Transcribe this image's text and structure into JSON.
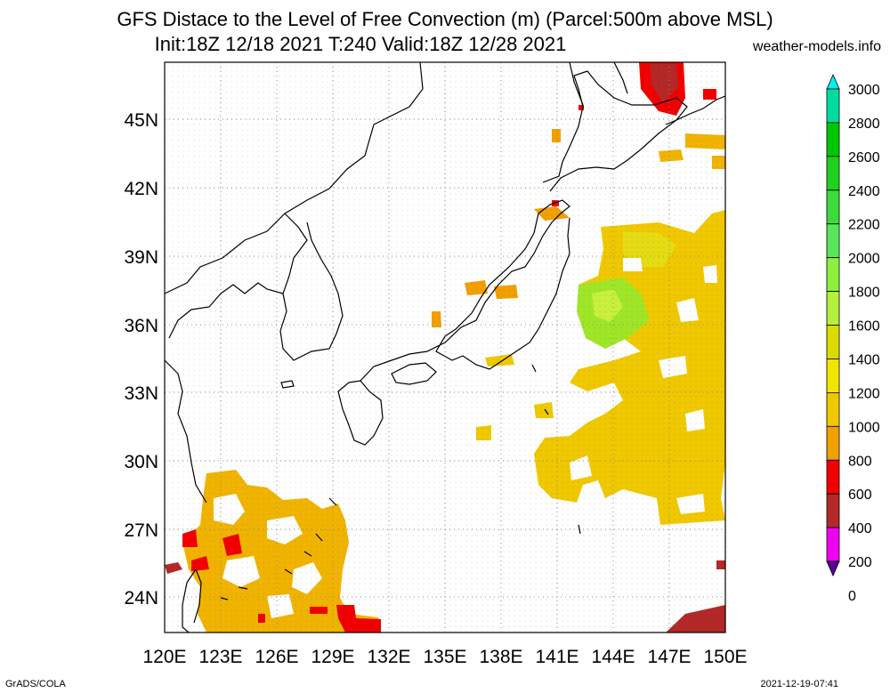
{
  "title_line1": "GFS Distace to the Level of Free Convection (m) (Parcel:500m above MSL)",
  "title_line2": "Init:18Z 12/18 2021 T:240 Valid:18Z 12/28 2021",
  "site": "weather-models.info",
  "credit": "GrADS/COLA",
  "timestamp": "2021-12-19-07:41",
  "lon_labels": [
    "120E",
    "123E",
    "126E",
    "129E",
    "132E",
    "135E",
    "138E",
    "141E",
    "144E",
    "147E",
    "150E"
  ],
  "lat_labels": [
    "45N",
    "42N",
    "39N",
    "36N",
    "33N",
    "30N",
    "27N",
    "24N"
  ],
  "colorbar": {
    "labels": [
      "3000",
      "2800",
      "2600",
      "2400",
      "2200",
      "2000",
      "1800",
      "1600",
      "1400",
      "1200",
      "1000",
      "800",
      "600",
      "400",
      "200",
      "0"
    ],
    "colors": [
      "#00f0f0",
      "#00dca0",
      "#00c800",
      "#1ed21e",
      "#3cdc3c",
      "#5ae65a",
      "#8cf03c",
      "#b4f03c",
      "#dcdc00",
      "#f0e600",
      "#f0c800",
      "#f0a000",
      "#f00000",
      "#b42828",
      "#f000f0",
      "#5a0096"
    ]
  },
  "map": {
    "lon_range": [
      120,
      150
    ],
    "lat_range": [
      22.5,
      47
    ],
    "field": "distance to level of free convection (m)"
  }
}
